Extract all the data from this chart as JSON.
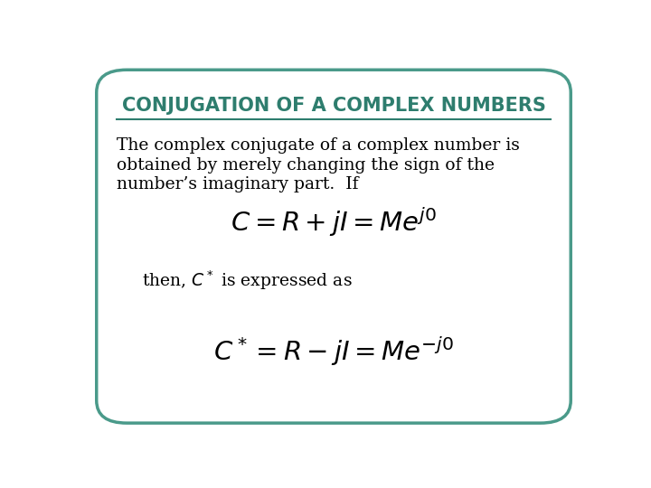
{
  "title": "CONJUGATION OF A COMPLEX NUMBERS",
  "title_color": "#2e7d6e",
  "background_color": "#ffffff",
  "border_color": "#4a9a8a",
  "body_line1": "The complex conjugate of a complex number is",
  "body_line2": "obtained by merely changing the sign of the",
  "body_line3": "number’s imaginary part.  If",
  "eq1": "$C = R + jI = Me^{j0}$",
  "then_line": "then, $C^*$ is expressed as",
  "eq2": "$C^* = R - jI = Me^{-j0}$",
  "figsize": [
    7.2,
    5.4
  ],
  "dpi": 100
}
